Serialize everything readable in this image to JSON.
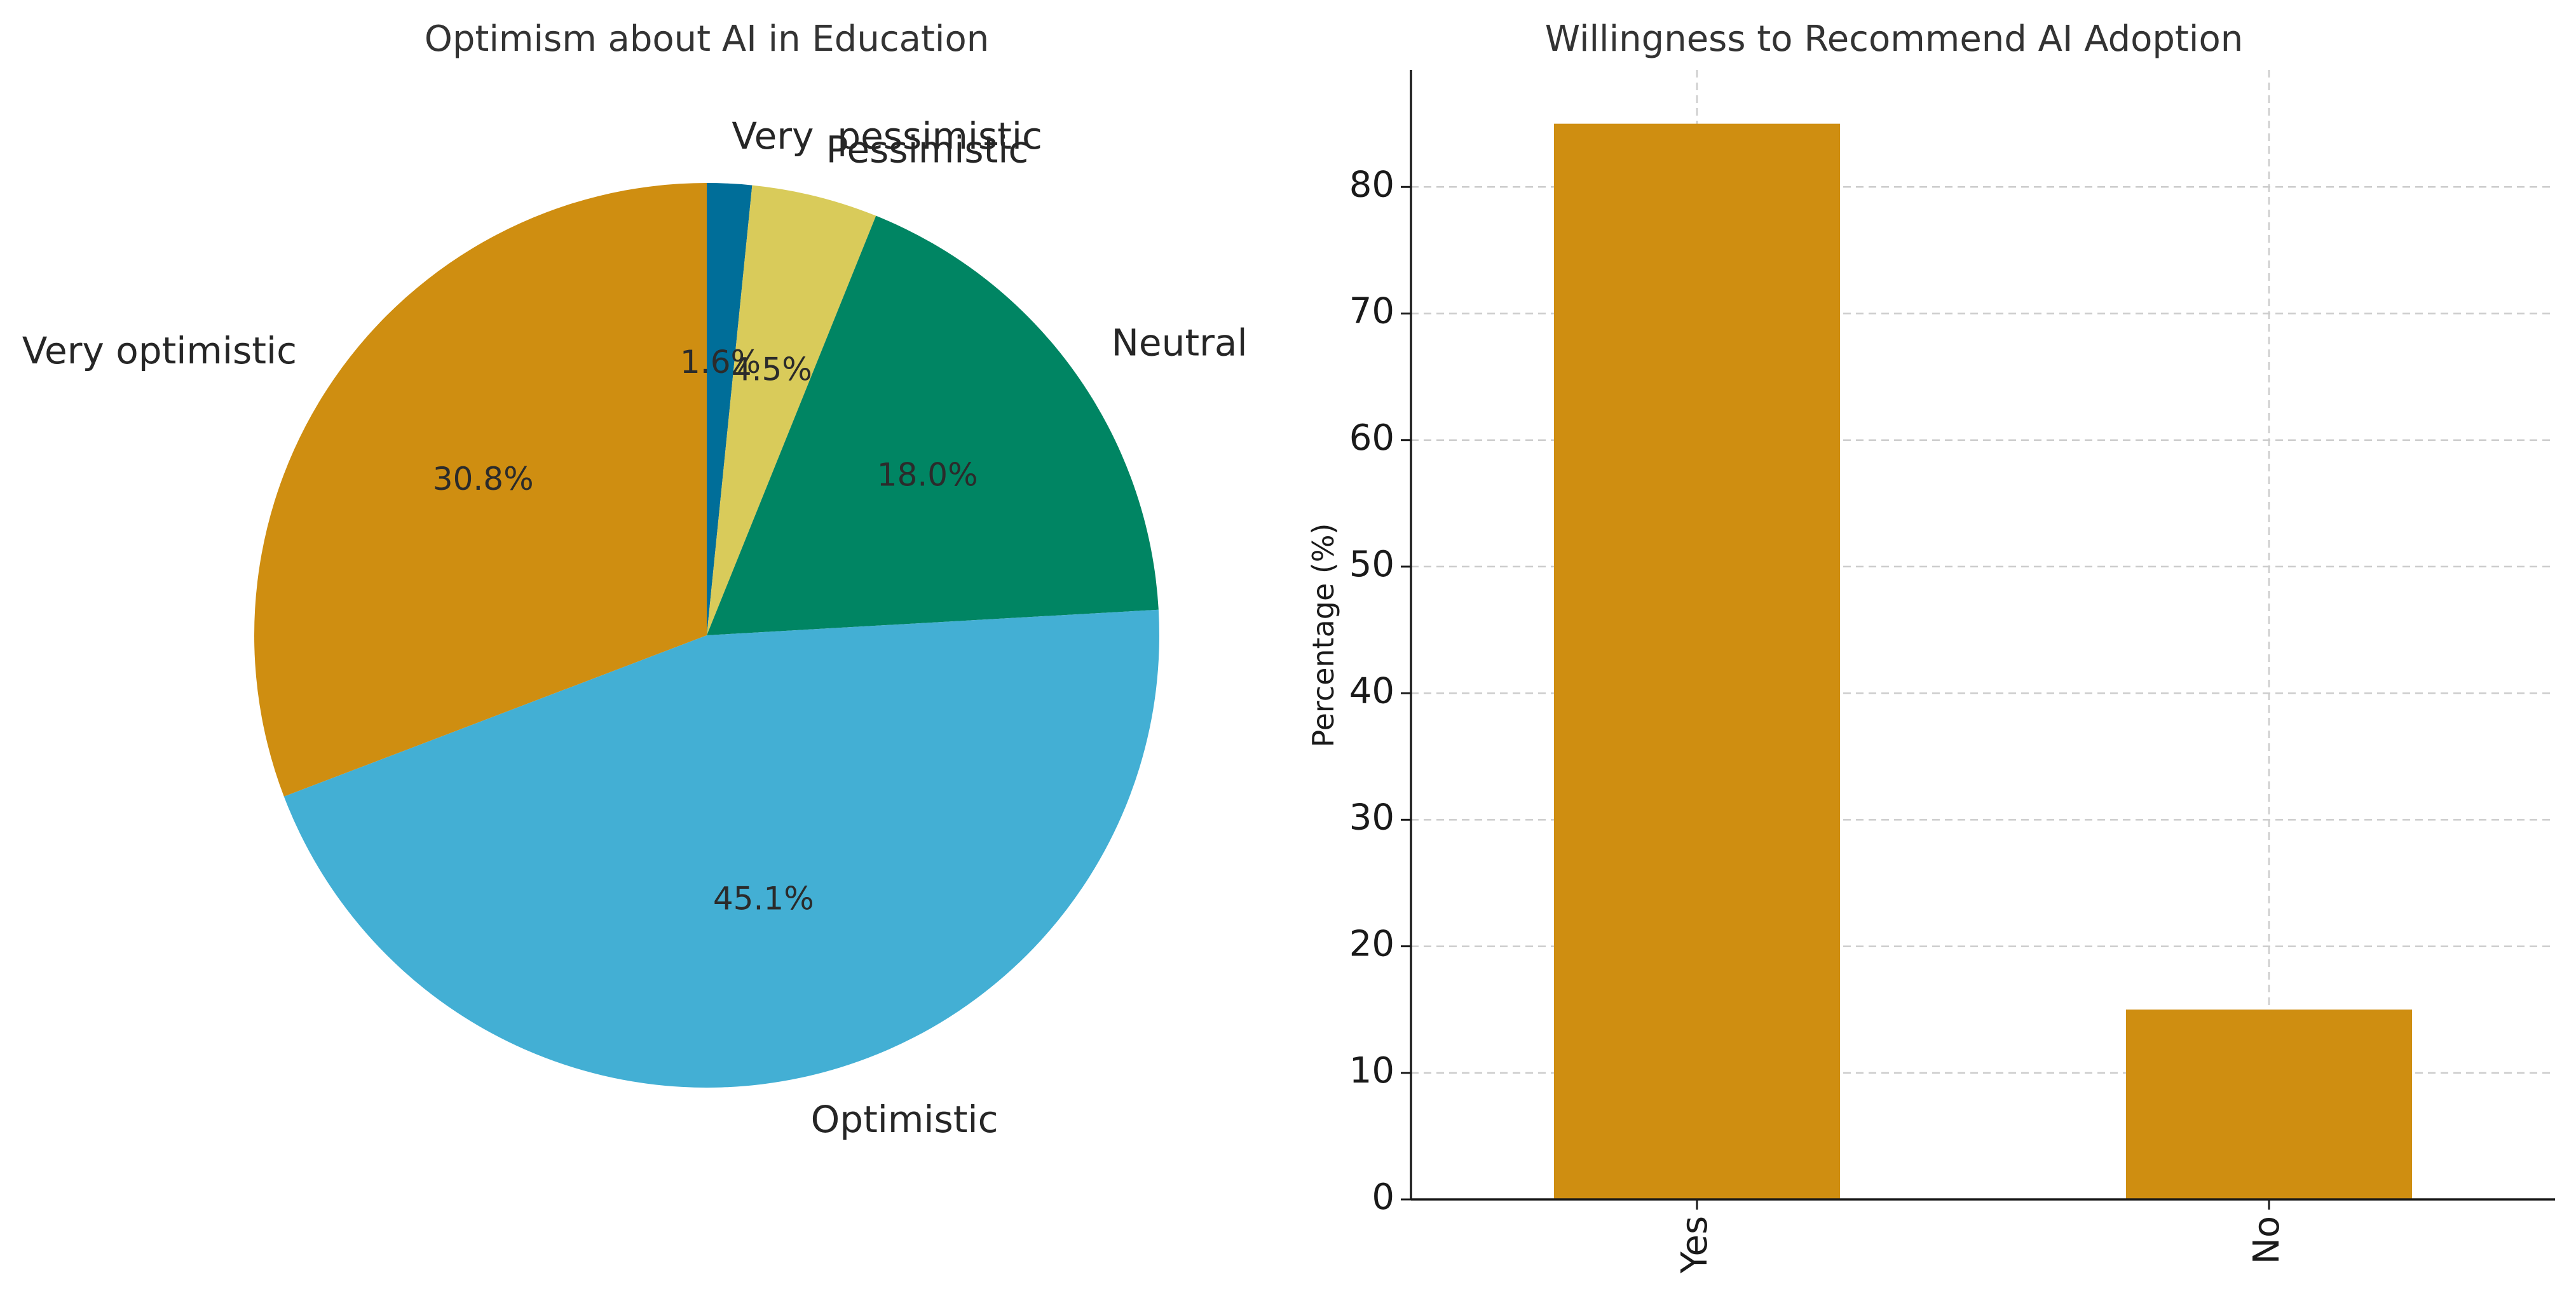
{
  "chart_data": [
    {
      "type": "pie",
      "title": "Optimism about AI in Education",
      "start_angle_deg": 90,
      "direction": "clockwise",
      "slices": [
        {
          "label": "Very  pessimistic",
          "value": 1.6,
          "pct_text": "1.6%",
          "color": "#006E99"
        },
        {
          "label": "Pessimistic",
          "value": 4.5,
          "pct_text": "4.5%",
          "color": "#D9CB5A"
        },
        {
          "label": "Neutral",
          "value": 18.0,
          "pct_text": "18.0%",
          "color": "#008563"
        },
        {
          "label": "Optimistic",
          "value": 45.1,
          "pct_text": "45.1%",
          "color": "#43AFD4"
        },
        {
          "label": "Very optimistic",
          "value": 30.8,
          "pct_text": "30.8%",
          "color": "#CF8E11"
        }
      ]
    },
    {
      "type": "bar",
      "title": "Willingness to Recommend AI Adoption",
      "categories": [
        "Yes",
        "No"
      ],
      "values": [
        85,
        15
      ],
      "color": "#CF8E11",
      "xlabel": "",
      "ylabel": "Percentage (%)",
      "ylim": [
        0,
        89.25
      ],
      "yticks": [
        0,
        10,
        20,
        30,
        40,
        50,
        60,
        70,
        80
      ],
      "grid": true
    }
  ]
}
